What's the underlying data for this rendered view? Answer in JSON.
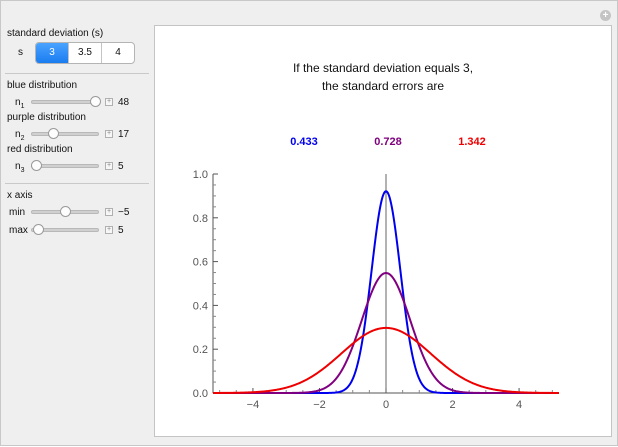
{
  "controls": {
    "stdev_label": "standard deviation (s)",
    "s_label": "s",
    "s_options": [
      "3",
      "3.5",
      "4"
    ],
    "s_selected": "3",
    "blue_label": "blue distribution",
    "n1_label": "n",
    "n1_sub": "1",
    "n1_value": "48",
    "n1_level": 0.94,
    "purple_label": "purple distribution",
    "n2_label": "n",
    "n2_sub": "2",
    "n2_value": "17",
    "n2_level": 0.33,
    "red_label": "red distribution",
    "n3_label": "n",
    "n3_sub": "3",
    "n3_value": "5",
    "n3_level": 0.08,
    "xaxis_label": "x axis",
    "min_label": "min",
    "min_value": "−5",
    "min_level": 0.5,
    "max_label": "max",
    "max_value": "5",
    "max_level": 0.1,
    "colors": {
      "blue": "#0000ee",
      "purple": "#800080",
      "red": "#ee0000"
    }
  },
  "plot": {
    "title_line1": "If the standard deviation equals 3,",
    "title_line2": "the standard errors are",
    "se_blue": "0.433",
    "se_purple": "0.728",
    "se_red": "1.342"
  },
  "chart_data": {
    "type": "line",
    "xlim": [
      -5.2,
      5.2
    ],
    "ylim": [
      0,
      1.0
    ],
    "x_ticks": [
      -4,
      -2,
      0,
      2,
      4
    ],
    "x_tick_labels": [
      "−4",
      "−2",
      "0",
      "2",
      "4"
    ],
    "y_ticks": [
      0.0,
      0.2,
      0.4,
      0.6,
      0.8,
      1.0
    ],
    "y_tick_labels": [
      "0.0",
      "0.2",
      "0.4",
      "0.6",
      "0.8",
      "1.0"
    ],
    "series": [
      {
        "color": "#0000ee",
        "mean": 0,
        "sd": 0.433
      },
      {
        "color": "#800080",
        "mean": 0,
        "sd": 0.728
      },
      {
        "color": "#ee0000",
        "mean": 0,
        "sd": 1.342
      }
    ]
  }
}
